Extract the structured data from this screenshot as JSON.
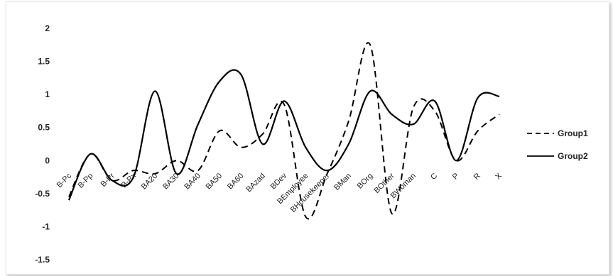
{
  "chart_data": {
    "type": "line",
    "title": "",
    "xlabel": "",
    "ylabel": "",
    "ylim": [
      -1.5,
      2
    ],
    "yticks": [
      "2",
      "1.5",
      "1",
      "0.5",
      "0",
      "-0.5",
      "-1",
      "-1.5"
    ],
    "categories": [
      "B-Pc",
      "B-Pp",
      "B-Pr",
      "B-Px",
      "BA20",
      "BA30",
      "BA40",
      "BA50",
      "BA60",
      "BAzad",
      "BDev",
      "BEmployee",
      "BHousekeeper",
      "BMan",
      "BOrg",
      "BOther",
      "BWoman",
      "C",
      "P",
      "R",
      "X"
    ],
    "grid": false,
    "legend_position": "right",
    "series": [
      {
        "name": "Group1",
        "style": "dashed",
        "color": "#000000",
        "values": [
          -0.55,
          0.1,
          -0.3,
          -0.15,
          -0.2,
          0.0,
          -0.15,
          0.45,
          0.2,
          0.4,
          0.85,
          -0.85,
          -0.2,
          0.6,
          1.75,
          -0.8,
          0.8,
          0.75,
          0.0,
          0.45,
          0.7
        ]
      },
      {
        "name": "Group2",
        "style": "solid",
        "color": "#000000",
        "values": [
          -0.6,
          0.1,
          -0.3,
          -0.25,
          1.05,
          -0.2,
          0.55,
          1.2,
          1.3,
          0.25,
          0.9,
          0.2,
          -0.15,
          0.25,
          1.05,
          0.7,
          0.55,
          0.9,
          0.0,
          0.95,
          0.97
        ]
      }
    ]
  }
}
